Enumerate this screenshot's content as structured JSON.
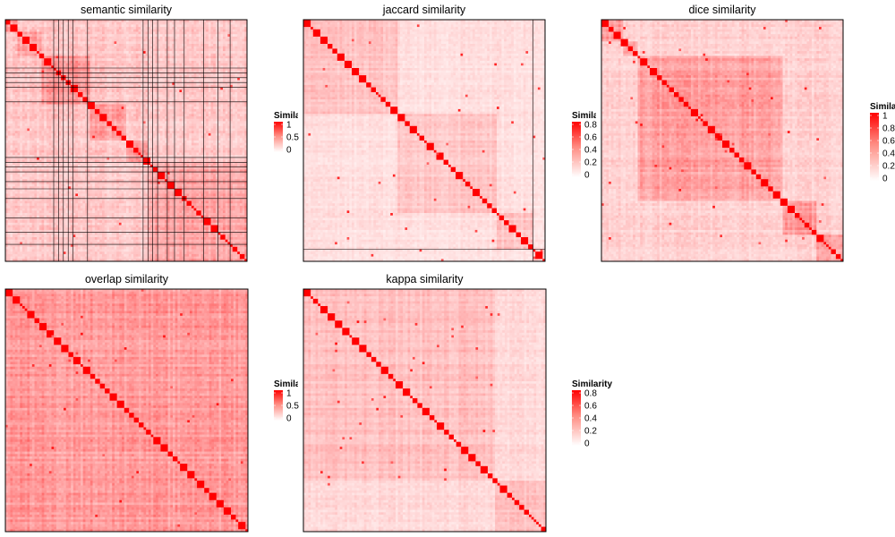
{
  "chart_data": [
    {
      "type": "heatmap",
      "title": "semantic similarity",
      "block_boundaries": [
        4,
        14,
        34,
        49,
        58,
        99
      ],
      "separator_rows": [
        19,
        21,
        23,
        25,
        27,
        33,
        56,
        58,
        60,
        62,
        66,
        69,
        73,
        81,
        87,
        92
      ],
      "separator_cols": [
        19,
        21,
        23,
        25,
        27,
        33,
        56,
        58,
        60,
        62,
        66,
        69,
        73,
        81,
        87,
        92
      ],
      "cluster_similarity": 0.28,
      "background_similarity": 0.15,
      "legend": {
        "title": "Similarity",
        "ticks": [
          "1",
          "0.5",
          "0"
        ],
        "max": 1
      }
    },
    {
      "type": "heatmap",
      "title": "jaccard similarity",
      "block_boundaries": [
        38,
        79,
        94,
        99
      ],
      "separator_rows": [
        94
      ],
      "separator_cols": [
        94
      ],
      "cluster_similarity": 0.12,
      "background_similarity": 0.06,
      "legend": {
        "title": "Similarity",
        "ticks": [
          "0.8",
          "0.6",
          "0.4",
          "0.2",
          "0"
        ],
        "max": 0.85
      }
    },
    {
      "type": "heatmap",
      "title": "dice similarity",
      "block_boundaries": [
        8,
        14,
        74,
        88,
        99
      ],
      "separator_rows": [],
      "separator_cols": [],
      "cluster_similarity": 0.28,
      "background_similarity": 0.12,
      "legend": {
        "title": "Similarity",
        "ticks": [
          "1",
          "0.8",
          "0.6",
          "0.4",
          "0.2",
          "0"
        ],
        "max": 1
      }
    },
    {
      "type": "heatmap",
      "title": "overlap similarity",
      "block_boundaries": [
        99
      ],
      "separator_rows": [],
      "separator_cols": [],
      "cluster_similarity": 0.3,
      "background_similarity": 0.3,
      "legend": {
        "title": "Similarity",
        "ticks": [
          "1",
          "0.5",
          "0"
        ],
        "max": 1
      }
    },
    {
      "type": "heatmap",
      "title": "kappa similarity",
      "block_boundaries": [
        78,
        99
      ],
      "separator_rows": [],
      "separator_cols": [],
      "cluster_similarity": 0.14,
      "background_similarity": 0.08,
      "legend": {
        "title": "Similarity",
        "ticks": [
          "0.8",
          "0.6",
          "0.4",
          "0.2",
          "0"
        ],
        "max": 0.85
      }
    }
  ],
  "colors": {
    "low": "#ffffff",
    "high": "#ff0000",
    "border": "#000000"
  }
}
